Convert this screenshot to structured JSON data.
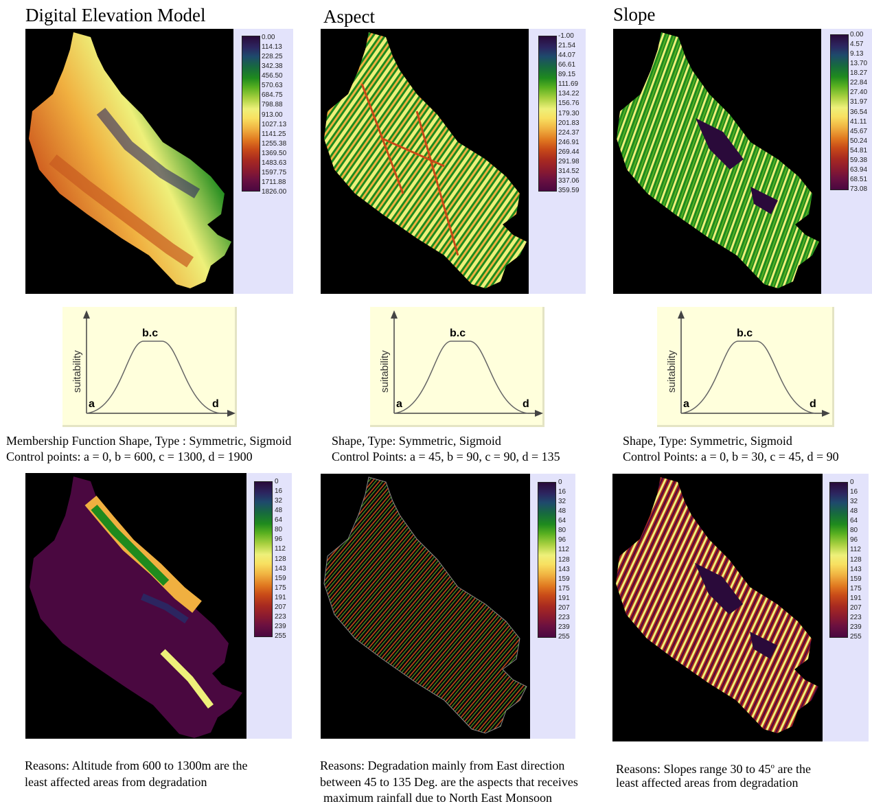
{
  "titles": {
    "dem": "Digital Elevation Model",
    "aspect": "Aspect",
    "slope": "Slope"
  },
  "legends": {
    "dem": [
      "0.00",
      "114.13",
      "228.25",
      "342.38",
      "456.50",
      "570.63",
      "684.75",
      "798.88",
      "913.00",
      "1027.13",
      "1141.25",
      "1255.38",
      "1369.50",
      "1483.63",
      "1597.75",
      "1711.88",
      "1826.00"
    ],
    "aspect": [
      "-1.00",
      "21.54",
      "44.07",
      "66.61",
      "89.15",
      "111.69",
      "134.22",
      "156.76",
      "179.30",
      "201.83",
      "224.37",
      "246.91",
      "269.44",
      "291.98",
      "314.52",
      "337.06",
      "359.59"
    ],
    "slope": [
      "0.00",
      "4.57",
      "9.13",
      "13.70",
      "18.27",
      "22.84",
      "27.40",
      "31.97",
      "36.54",
      "41.11",
      "45.67",
      "50.24",
      "54.81",
      "59.38",
      "63.94",
      "68.51",
      "73.08"
    ],
    "suitability": [
      "0",
      "16",
      "32",
      "48",
      "64",
      "80",
      "96",
      "112",
      "128",
      "143",
      "159",
      "175",
      "191",
      "207",
      "223",
      "239",
      "255"
    ]
  },
  "membership": {
    "ylabel": "suitability",
    "point_a": "a",
    "point_bc": "b.c",
    "point_d": "d"
  },
  "captions": {
    "dem_line1": "Membership Function Shape, Type : Symmetric, Sigmoid",
    "dem_line2": "Control points: a = 0, b = 600, c = 1300,  d = 1900",
    "aspect_line1": "Shape, Type: Symmetric, Sigmoid",
    "aspect_line2": "Control Points: a = 45, b = 90, c = 90, d = 135",
    "slope_line1": "Shape, Type: Symmetric, Sigmoid",
    "slope_line2": "Control Points: a = 0, b = 30, c = 45, d = 90"
  },
  "reasons": {
    "dem_line1": "Reasons: Altitude from 600 to 1300m are the",
    "dem_line2": "least affected areas from degradation",
    "aspect_line1": "Reasons: Degradation mainly from East direction",
    "aspect_line2": "between 45 to 135 Deg. are the aspects that receives",
    "aspect_line3": "maximum rainfall due to North East Monsoon",
    "slope_line1": "Reasons: Slopes range 30 to 45",
    "slope_deg": "o",
    "slope_line1b": " are the",
    "slope_line2": "least affected areas from degradation"
  },
  "colors": {
    "legend_background": "#e3e3fb",
    "map_background": "#000000",
    "membership_background": "#ffffdc",
    "ramp": [
      "#2a0a3a",
      "#2c2560",
      "#1e4a6c",
      "#176a3e",
      "#1f8a1e",
      "#58b020",
      "#a8d040",
      "#eef07a",
      "#f8e060",
      "#f0b040",
      "#e07820",
      "#c84a18",
      "#a82a20",
      "#8a1a30",
      "#6a1040",
      "#4a0840"
    ]
  }
}
